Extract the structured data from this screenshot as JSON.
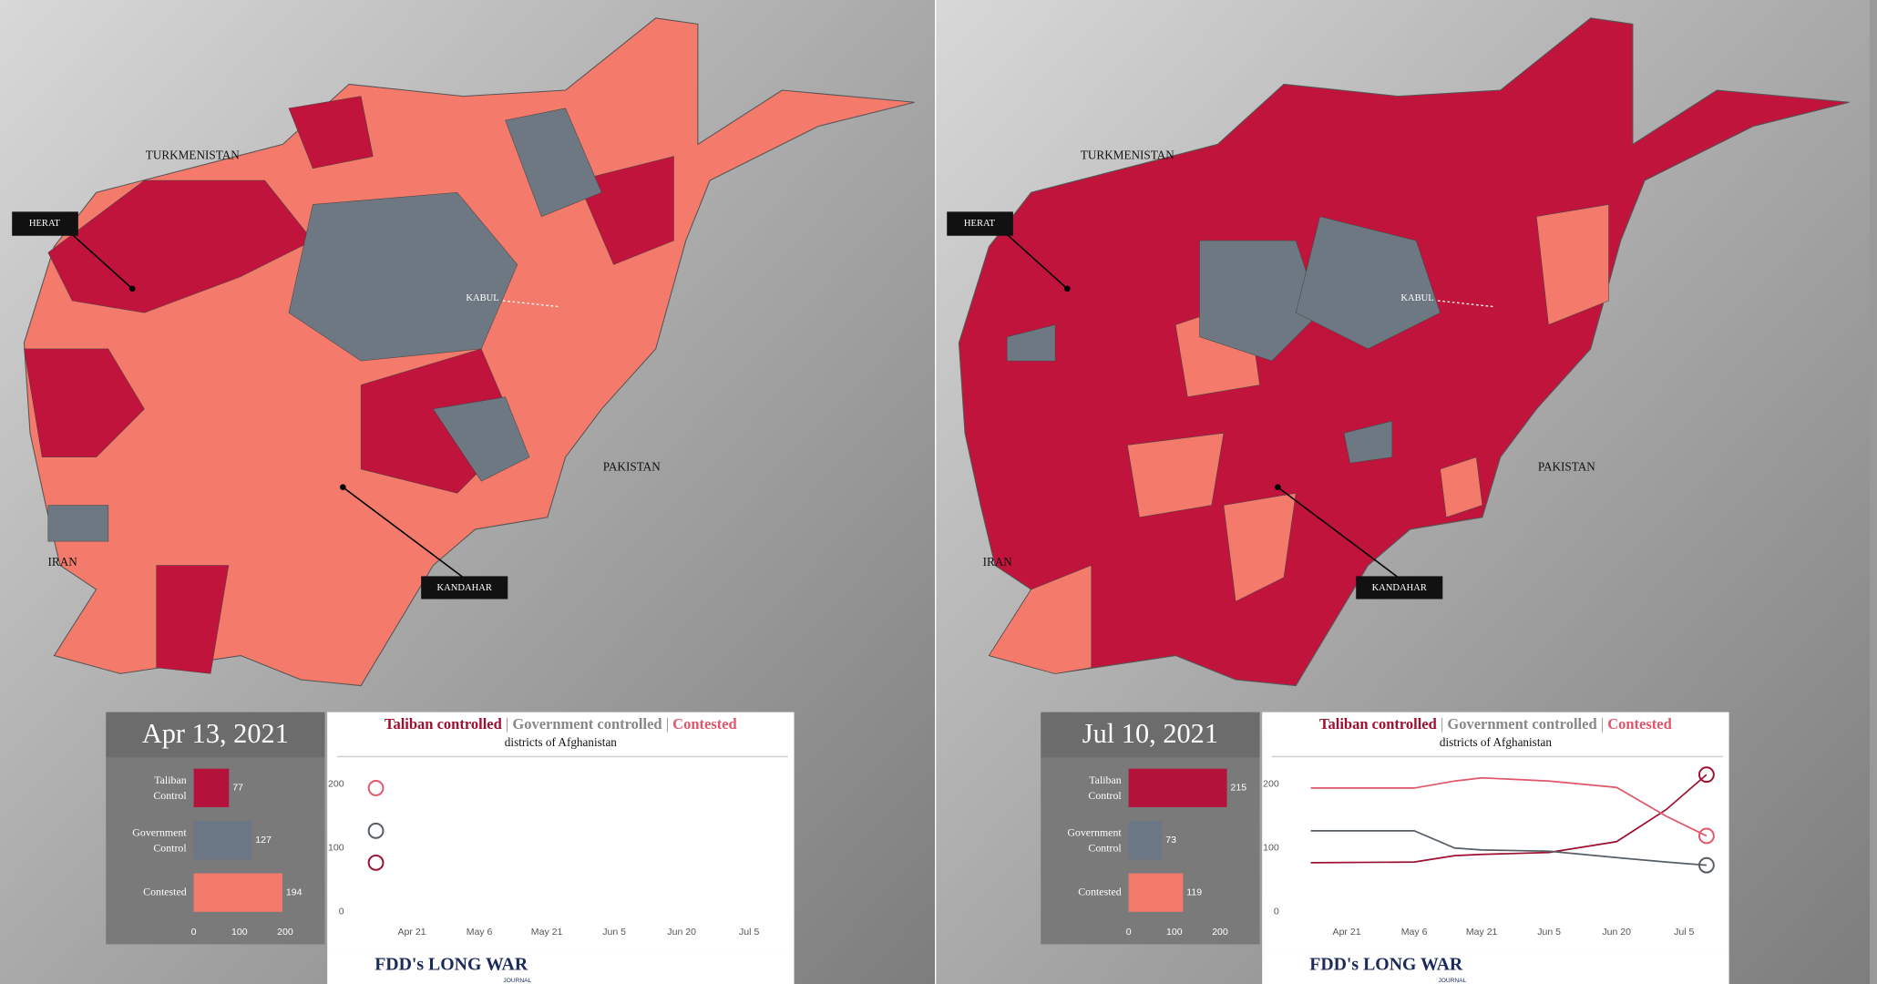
{
  "panels": [
    {
      "date": "Apr 13, 2021",
      "map_labels": [
        "TURKMENISTAN",
        "IRAN",
        "PAKISTAN"
      ],
      "callouts": [
        "HERAT",
        "KABUL",
        "KANDAHAR"
      ],
      "logo": "FDD's LONG WAR",
      "logo_sub": "JOURNAL"
    },
    {
      "date": "Jul 10, 2021",
      "map_labels": [
        "TURKMENISTAN",
        "IRAN",
        "PAKISTAN"
      ],
      "callouts": [
        "HERAT",
        "KABUL",
        "KANDAHAR"
      ],
      "logo": "FDD's LONG WAR",
      "logo_sub": "JOURNAL"
    }
  ],
  "chart_data": [
    {
      "type": "bar",
      "orientation": "horizontal",
      "categories": [
        "Taliban Control",
        "Government Control",
        "Contested"
      ],
      "values": [
        77,
        127,
        194
      ],
      "colors": [
        "#b3123a",
        "#6b7784",
        "#f47b6b"
      ],
      "xlim": [
        0,
        200
      ],
      "xticks": [
        0,
        100,
        200
      ]
    },
    {
      "type": "line",
      "title_separator": "|",
      "subtitle": "districts of Afghanistan",
      "x": [
        "2021-04-13"
      ],
      "series": [
        {
          "name": "Taliban controlled",
          "color": "#9e1030",
          "values": [
            77
          ]
        },
        {
          "name": "Government controlled",
          "color": "#555d66",
          "values": [
            127
          ]
        },
        {
          "name": "Contested",
          "color": "#e2566a",
          "values": [
            194
          ]
        }
      ],
      "xlim": [
        "2021-04-07",
        "2021-07-15"
      ],
      "ylim": [
        0,
        230
      ],
      "yticks": [
        0,
        100,
        200
      ],
      "xticks": [
        {
          "value": "2021-04-21",
          "label": "Apr 21"
        },
        {
          "value": "2021-05-06",
          "label": "May 6"
        },
        {
          "value": "2021-05-21",
          "label": "May 21"
        },
        {
          "value": "2021-06-05",
          "label": "Jun 5"
        },
        {
          "value": "2021-06-20",
          "label": "Jun 20"
        },
        {
          "value": "2021-07-05",
          "label": "Jul 5"
        }
      ]
    },
    {
      "type": "bar",
      "orientation": "horizontal",
      "categories": [
        "Taliban Control",
        "Government Control",
        "Contested"
      ],
      "values": [
        215,
        73,
        119
      ],
      "colors": [
        "#b3123a",
        "#6b7784",
        "#f47b6b"
      ],
      "xlim": [
        0,
        200
      ],
      "xticks": [
        0,
        100,
        200
      ]
    },
    {
      "type": "line",
      "title_separator": "|",
      "subtitle": "districts of Afghanistan",
      "x": [
        "2021-04-13",
        "2021-05-06",
        "2021-05-15",
        "2021-05-21",
        "2021-06-05",
        "2021-06-20",
        "2021-07-01",
        "2021-07-10"
      ],
      "series": [
        {
          "name": "Taliban controlled",
          "color": "#9e1030",
          "values": [
            77,
            78,
            88,
            90,
            93,
            110,
            160,
            215
          ]
        },
        {
          "name": "Government controlled",
          "color": "#555d66",
          "values": [
            127,
            127,
            100,
            97,
            95,
            85,
            78,
            73
          ]
        },
        {
          "name": "Contested",
          "color": "#e2566a",
          "values": [
            194,
            194,
            205,
            210,
            205,
            195,
            150,
            119
          ]
        }
      ],
      "xlim": [
        "2021-04-07",
        "2021-07-15"
      ],
      "ylim": [
        0,
        230
      ],
      "yticks": [
        0,
        100,
        200
      ],
      "xticks": [
        {
          "value": "2021-04-21",
          "label": "Apr 21"
        },
        {
          "value": "2021-05-06",
          "label": "May 6"
        },
        {
          "value": "2021-05-21",
          "label": "May 21"
        },
        {
          "value": "2021-06-05",
          "label": "Jun 5"
        },
        {
          "value": "2021-06-20",
          "label": "Jun 20"
        },
        {
          "value": "2021-07-05",
          "label": "Jul 5"
        }
      ]
    }
  ]
}
